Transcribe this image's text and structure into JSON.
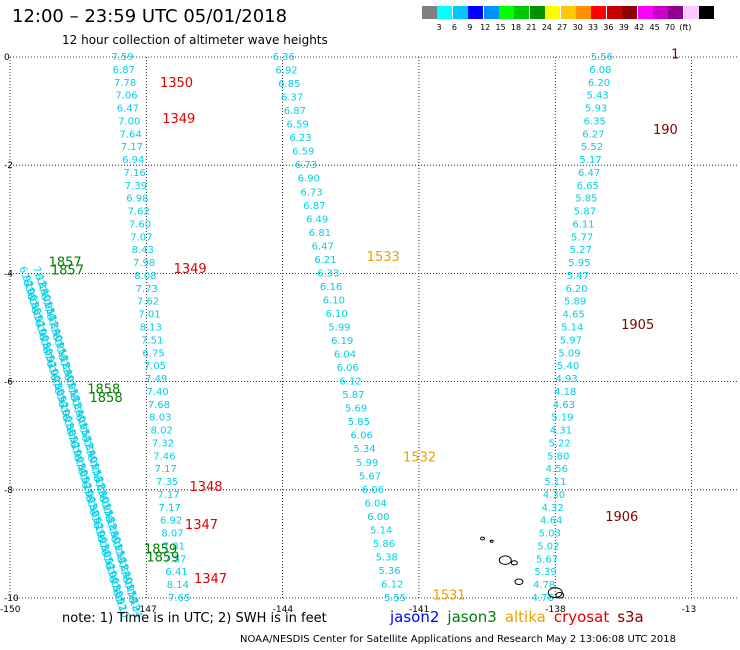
{
  "header": {
    "title": "12:00 – 23:59 UTC 05/01/2018",
    "subtitle": "12 hour collection of altimeter wave heights"
  },
  "colorbar": {
    "colors": [
      "#808080",
      "#00ffff",
      "#00c8ff",
      "#0000ff",
      "#0090ff",
      "#00ff00",
      "#00c800",
      "#009000",
      "#ffff00",
      "#ffc800",
      "#ff9000",
      "#ff0000",
      "#c80000",
      "#900000",
      "#ff00ff",
      "#c800c8",
      "#900090",
      "#ffc8ff",
      "#000000"
    ],
    "labels": [
      "3",
      "6",
      "9",
      "12",
      "15",
      "18",
      "21",
      "24",
      "27",
      "30",
      "33",
      "36",
      "39",
      "42",
      "45",
      "70",
      "(ft)"
    ]
  },
  "axes": {
    "x_ticks": [
      "-150",
      "-147",
      "-144",
      "-141",
      "-138",
      "-13"
    ],
    "y_ticks": [
      "0",
      "-2",
      "-4",
      "-6",
      "-8",
      "-10"
    ]
  },
  "tracks": [
    {
      "lon_top": -147.55,
      "lon_bot": -146.3,
      "values": [
        "7.59",
        "6.87",
        "7.78",
        "7.06",
        "6.47",
        "7.00",
        "7.64",
        "7.17",
        "6.94",
        "7.16",
        "7.39",
        "6.98",
        "7.62",
        "7.60",
        "7.07",
        "8.43",
        "7.98",
        "8.08",
        "7.73",
        "7.62",
        "7.01",
        "8.13",
        "7.51",
        "6.75",
        "7.05",
        "7.49",
        "7.40",
        "7.68",
        "8.03",
        "8.02",
        "7.32",
        "7.46",
        "7.17",
        "7.35",
        "7.17",
        "7.17",
        "6.92",
        "8.07",
        "7.81",
        "7.57",
        "6.41",
        "8.14",
        "7.65"
      ]
    },
    {
      "lon_top": -144.0,
      "lon_bot": -141.55,
      "values": [
        "6.36",
        "6.92",
        "6.85",
        "6.37",
        "6.87",
        "6.59",
        "6.23",
        "6.59",
        "6.73",
        "6.90",
        "6.73",
        "6.87",
        "6.49",
        "6.81",
        "6.47",
        "6.21",
        "6.33",
        "6.16",
        "6.10",
        "6.10",
        "5.99",
        "6.19",
        "6.04",
        "6.06",
        "6.12",
        "5.87",
        "5.69",
        "5.85",
        "6.06",
        "5.34",
        "5.99",
        "5.67",
        "6.06",
        "6.04",
        "6.00",
        "5.14",
        "5.86",
        "5.38",
        "5.36",
        "6.12",
        "5.55"
      ]
    },
    {
      "lon_top": -137.0,
      "lon_bot": -138.3,
      "values": [
        "5.56",
        "6.08",
        "6.20",
        "5.43",
        "5.93",
        "6.35",
        "6.27",
        "5.52",
        "5.17",
        "6.47",
        "6.65",
        "5.85",
        "5.87",
        "6.11",
        "5.77",
        "5.27",
        "5.95",
        "5.47",
        "6.20",
        "5.89",
        "4.65",
        "5.14",
        "5.97",
        "5.09",
        "5.40",
        "4.93",
        "4.18",
        "4.63",
        "5.19",
        "4.31",
        "5.22",
        "5.80",
        "4.56",
        "5.11",
        "4.30",
        "4.32",
        "4.64",
        "5.03",
        "5.02",
        "5.67",
        "5.39",
        "4.78",
        "4.76"
      ]
    }
  ],
  "dense_tracks": [
    {
      "name": "track-1857-1858",
      "lon_top": -149.8,
      "lat_top": -3.9,
      "lon_bot": -147.7,
      "lat_bot": -10.0,
      "count": 50,
      "sample_values": [
        "6.92",
        "7.10",
        "6.96",
        "7.23",
        "6.88",
        "7.05"
      ]
    },
    {
      "name": "track-1859",
      "lon_top": -149.5,
      "lat_top": -3.9,
      "lon_bot": -147.4,
      "lat_bot": -10.0,
      "count": 50,
      "sample_values": [
        "7.12",
        "6.84",
        "7.30",
        "7.01",
        "6.95",
        "7.18"
      ]
    }
  ],
  "pass_labels": [
    {
      "text": "1350",
      "lon": -146.7,
      "lat": -0.48,
      "color": "#e00000"
    },
    {
      "text": "1349",
      "lon": -146.65,
      "lat": -1.15,
      "color": "#e00000"
    },
    {
      "text": "1349",
      "lon": -146.4,
      "lat": -3.92,
      "color": "#e00000"
    },
    {
      "text": "1348",
      "lon": -146.05,
      "lat": -7.95,
      "color": "#e00000"
    },
    {
      "text": "1347",
      "lon": -146.15,
      "lat": -8.65,
      "color": "#e00000"
    },
    {
      "text": "1347",
      "lon": -145.95,
      "lat": -9.65,
      "color": "#e00000"
    },
    {
      "text": "1533",
      "lon": -142.15,
      "lat": -3.7,
      "color": "#f0a000"
    },
    {
      "text": "1532",
      "lon": -141.35,
      "lat": -7.4,
      "color": "#f0a000"
    },
    {
      "text": "1531",
      "lon": -140.7,
      "lat": -9.95,
      "color": "#f0a000"
    },
    {
      "text": "1905",
      "lon": -136.55,
      "lat": -4.95,
      "color": "#800000"
    },
    {
      "text": "1906",
      "lon": -136.9,
      "lat": -8.5,
      "color": "#800000"
    },
    {
      "text": "190",
      "lon": -135.85,
      "lat": -1.35,
      "color": "#800000"
    },
    {
      "text": "1",
      "lon": -135.45,
      "lat": 0.05,
      "color": "#800000"
    },
    {
      "text": "1857",
      "lon": -149.15,
      "lat": -3.8,
      "color": "#008000"
    },
    {
      "text": "1857",
      "lon": -149.1,
      "lat": -3.95,
      "color": "#008000"
    },
    {
      "text": "1858",
      "lon": -148.3,
      "lat": -6.15,
      "color": "#008000"
    },
    {
      "text": "1858",
      "lon": -148.25,
      "lat": -6.3,
      "color": "#008000"
    },
    {
      "text": "1859",
      "lon": -147.05,
      "lat": -9.1,
      "color": "#008000"
    },
    {
      "text": "1859",
      "lon": -147.0,
      "lat": -9.25,
      "color": "#008000"
    }
  ],
  "note": "note: 1) Time is in UTC; 2) SWH is in feet",
  "legend": [
    {
      "text": "jason2",
      "color": "#0000ff"
    },
    {
      "text": "jason3",
      "color": "#008000"
    },
    {
      "text": "altika",
      "color": "#f0a000"
    },
    {
      "text": "cryosat",
      "color": "#e00000"
    },
    {
      "text": "s3a",
      "color": "#800000"
    }
  ],
  "credit": "NOAA/NESDIS Center for Satellite Applications and Research    May  2 13:06:08 UTC 2018"
}
